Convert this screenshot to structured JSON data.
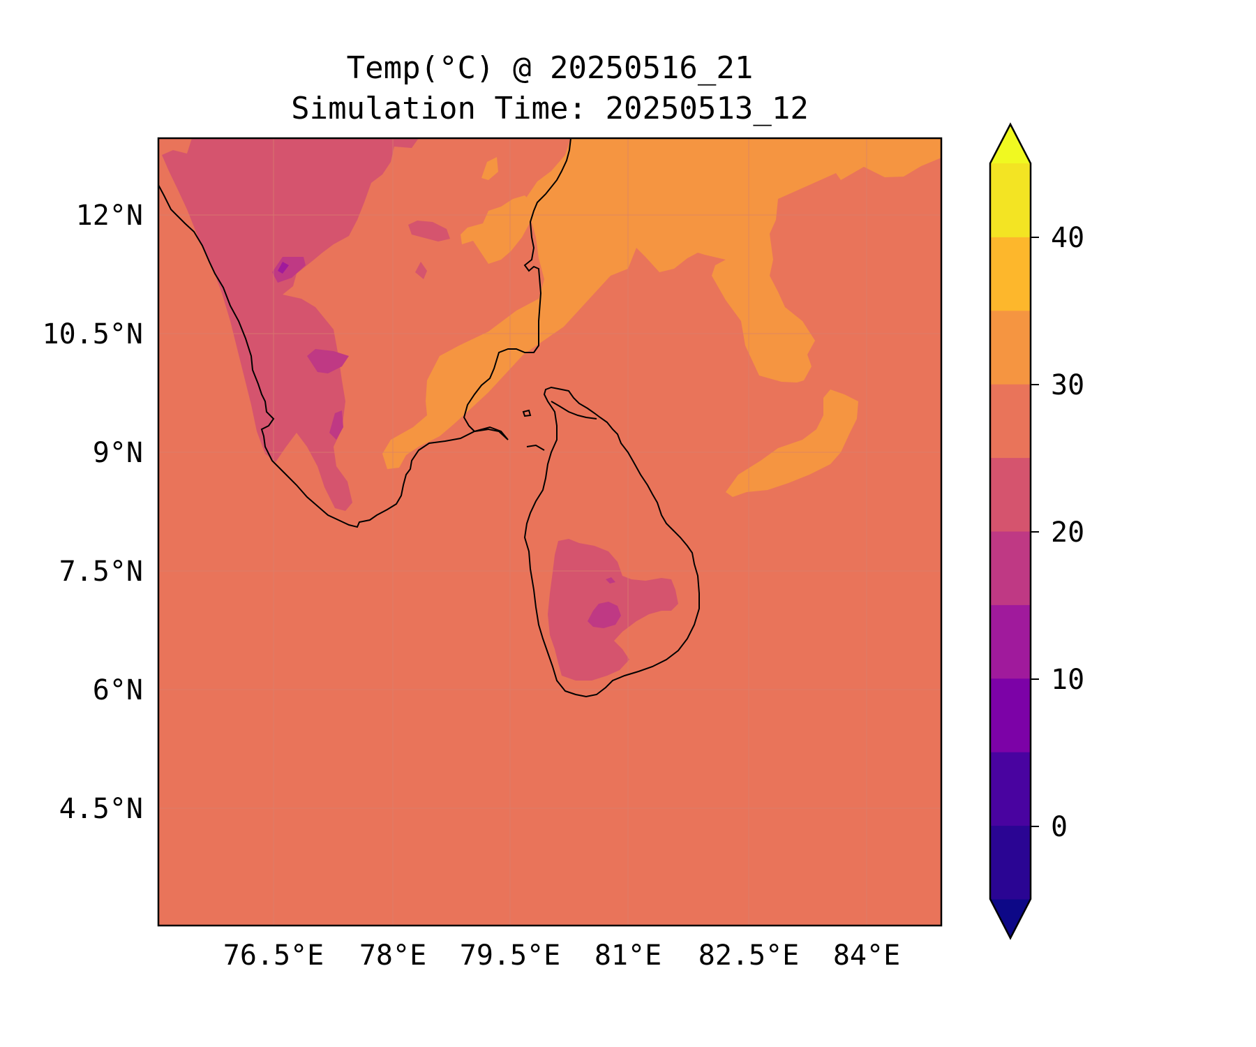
{
  "title": {
    "line1": "Temp(°C) @ 20250516_21",
    "line2": "Simulation Time: 20250513_12"
  },
  "map": {
    "lat_ticks": [
      "12°N",
      "10.5°N",
      "9°N",
      "7.5°N",
      "6°N",
      "4.5°N"
    ],
    "lon_ticks": [
      "76.5°E",
      "78°E",
      "79.5°E",
      "81°E",
      "82.5°E",
      "84°E"
    ],
    "field": "near-surface temperature",
    "background_color": "#e9745a"
  },
  "colorbar": {
    "ticks": [
      "40",
      "30",
      "20",
      "10",
      "0"
    ],
    "levels": [
      -5,
      0,
      5,
      10,
      15,
      20,
      25,
      30,
      35,
      40,
      45
    ],
    "colors": [
      "#0d0887",
      "#2a0593",
      "#4903a0",
      "#7c02a7",
      "#a01a9c",
      "#bf3984",
      "#d5546e",
      "#e9745a",
      "#f59541",
      "#fdb72c",
      "#f3e423",
      "#f0f921"
    ],
    "extend": "both",
    "colormap": "plasma"
  }
}
